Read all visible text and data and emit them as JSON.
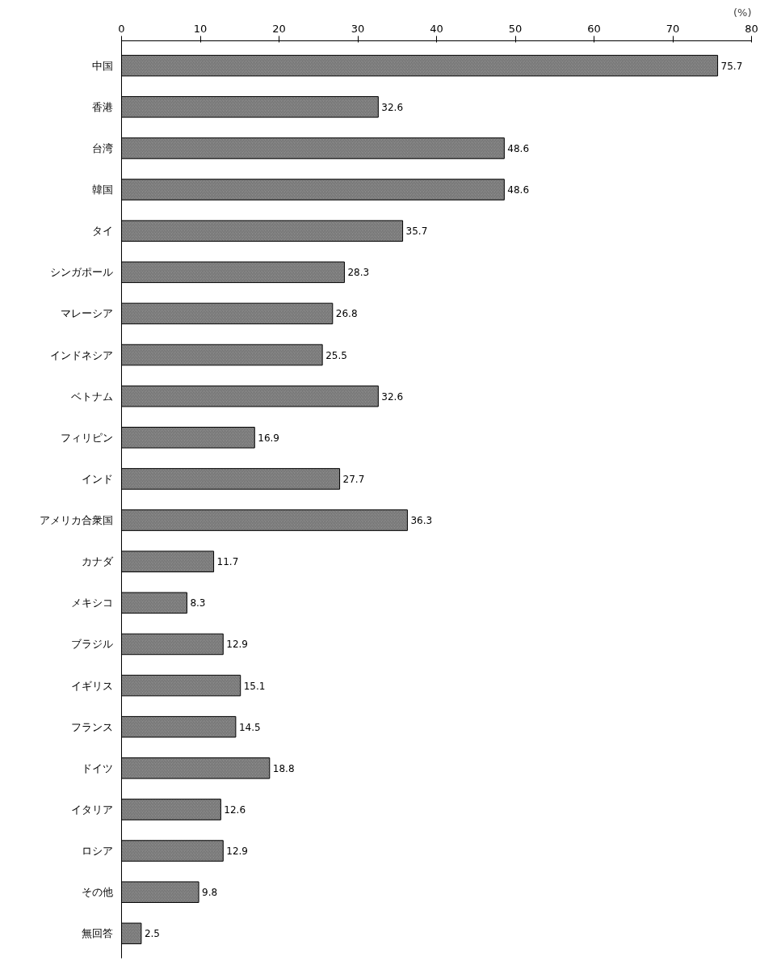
{
  "chart_data": {
    "type": "bar",
    "orientation": "horizontal",
    "xlabel": "(%)",
    "categories": [
      "中国",
      "香港",
      "台湾",
      "韓国",
      "タイ",
      "シンガポール",
      "マレーシア",
      "インドネシア",
      "ベトナム",
      "フィリピン",
      "インド",
      "アメリカ合衆国",
      "カナダ",
      "メキシコ",
      "ブラジル",
      "イギリス",
      "フランス",
      "ドイツ",
      "イタリア",
      "ロシア",
      "その他",
      "無回答"
    ],
    "values": [
      75.7,
      32.6,
      48.6,
      48.6,
      35.7,
      28.3,
      26.8,
      25.5,
      32.6,
      16.9,
      27.7,
      36.3,
      11.7,
      8.3,
      12.9,
      15.1,
      14.5,
      18.8,
      12.6,
      12.9,
      9.8,
      2.5
    ],
    "color": "#8c8c8c",
    "xlim": [
      0,
      80
    ],
    "xticks": [
      0,
      10,
      20,
      30,
      40,
      50,
      60,
      70,
      80
    ],
    "data_labels": true,
    "grid": false
  }
}
